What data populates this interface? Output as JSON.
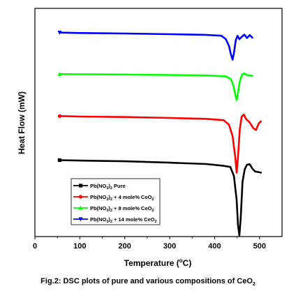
{
  "chart_data": {
    "type": "line",
    "xlabel_main": "Temperature (",
    "xlabel_sup": "o",
    "xlabel_unit": "C)",
    "ylabel": "Heat Flow (mW)",
    "caption_main": "Fig.2: DSC plots of pure and various compositions of CeO",
    "caption_sub": "2",
    "xlim": [
      0,
      550
    ],
    "ylim": [
      0,
      100
    ],
    "xticks": [
      "0",
      "100",
      "200",
      "300",
      "400",
      "500"
    ],
    "xtick_values": [
      0,
      100,
      200,
      300,
      400,
      500
    ],
    "grid": false,
    "legend_placement": "lower-left-inside",
    "series": [
      {
        "legend_pre": "Pb(NO",
        "legend_sub": "3",
        "legend_post": ")",
        "legend_sub2": "2",
        "legend_tail": " Pure",
        "color": "#000000",
        "marker": "square",
        "points": [
          [
            55,
            33.5
          ],
          [
            100,
            33.3
          ],
          [
            200,
            33.0
          ],
          [
            300,
            32.4
          ],
          [
            380,
            31.8
          ],
          [
            420,
            31.0
          ],
          [
            435,
            30.5
          ],
          [
            443,
            26.5
          ],
          [
            449,
            16.0
          ],
          [
            452,
            5.0
          ],
          [
            455,
            0.5
          ],
          [
            458,
            8.0
          ],
          [
            462,
            24.0
          ],
          [
            467,
            29.5
          ],
          [
            472,
            31.5
          ],
          [
            478,
            31.7
          ],
          [
            484,
            29.8
          ],
          [
            490,
            28.5
          ],
          [
            497,
            28.3
          ],
          [
            503,
            28.0
          ]
        ]
      },
      {
        "legend_pre": "Pb(NO",
        "legend_sub": "3",
        "legend_post": ")",
        "legend_sub2": "2",
        "legend_tail": " + 4 mole% CeO",
        "legend_sub3": "2",
        "color": "#ff0000",
        "marker": "circle",
        "points": [
          [
            55,
            52.8
          ],
          [
            100,
            52.6
          ],
          [
            200,
            52.4
          ],
          [
            300,
            52.0
          ],
          [
            380,
            51.6
          ],
          [
            420,
            51.0
          ],
          [
            432,
            49.0
          ],
          [
            440,
            44.0
          ],
          [
            446,
            34.5
          ],
          [
            449,
            28.0
          ],
          [
            452,
            35.0
          ],
          [
            456,
            47.0
          ],
          [
            460,
            52.5
          ],
          [
            465,
            53.5
          ],
          [
            470,
            51.5
          ],
          [
            478,
            50.0
          ],
          [
            486,
            47.5
          ],
          [
            492,
            46.7
          ],
          [
            498,
            49.5
          ],
          [
            503,
            50.5
          ]
        ]
      },
      {
        "legend_pre": "Pb(NO",
        "legend_sub": "3",
        "legend_post": ")",
        "legend_sub2": "2",
        "legend_tail": " + 8 mole% CeO",
        "legend_sub3": "2",
        "color": "#00ff00",
        "marker": "triangle-up",
        "points": [
          [
            55,
            71.2
          ],
          [
            100,
            71.1
          ],
          [
            200,
            71.0
          ],
          [
            300,
            70.8
          ],
          [
            380,
            70.6
          ],
          [
            425,
            70.2
          ],
          [
            436,
            69.0
          ],
          [
            442,
            66.0
          ],
          [
            446,
            62.0
          ],
          [
            449,
            59.8
          ],
          [
            452,
            63.0
          ],
          [
            456,
            68.0
          ],
          [
            461,
            71.0
          ],
          [
            466,
            71.5
          ],
          [
            472,
            70.8
          ],
          [
            478,
            70.6
          ],
          [
            484,
            70.5
          ]
        ]
      },
      {
        "legend_pre": "Pb(NO",
        "legend_sub": "3",
        "legend_post": ")",
        "legend_sub2": "2",
        "legend_tail": " + 14 mole% CeO",
        "legend_sub3": "2",
        "color": "#0000ff",
        "marker": "triangle-down",
        "points": [
          [
            55,
            89.4
          ],
          [
            100,
            89.2
          ],
          [
            200,
            89.0
          ],
          [
            300,
            88.7
          ],
          [
            380,
            88.4
          ],
          [
            415,
            88.0
          ],
          [
            425,
            86.5
          ],
          [
            432,
            83.5
          ],
          [
            436,
            80.0
          ],
          [
            440,
            77.5
          ],
          [
            443,
            80.5
          ],
          [
            447,
            86.0
          ],
          [
            451,
            88.0
          ],
          [
            455,
            86.5
          ],
          [
            460,
            87.5
          ],
          [
            466,
            88.5
          ],
          [
            472,
            87.0
          ],
          [
            478,
            88.3
          ],
          [
            484,
            87.2
          ]
        ]
      }
    ]
  }
}
